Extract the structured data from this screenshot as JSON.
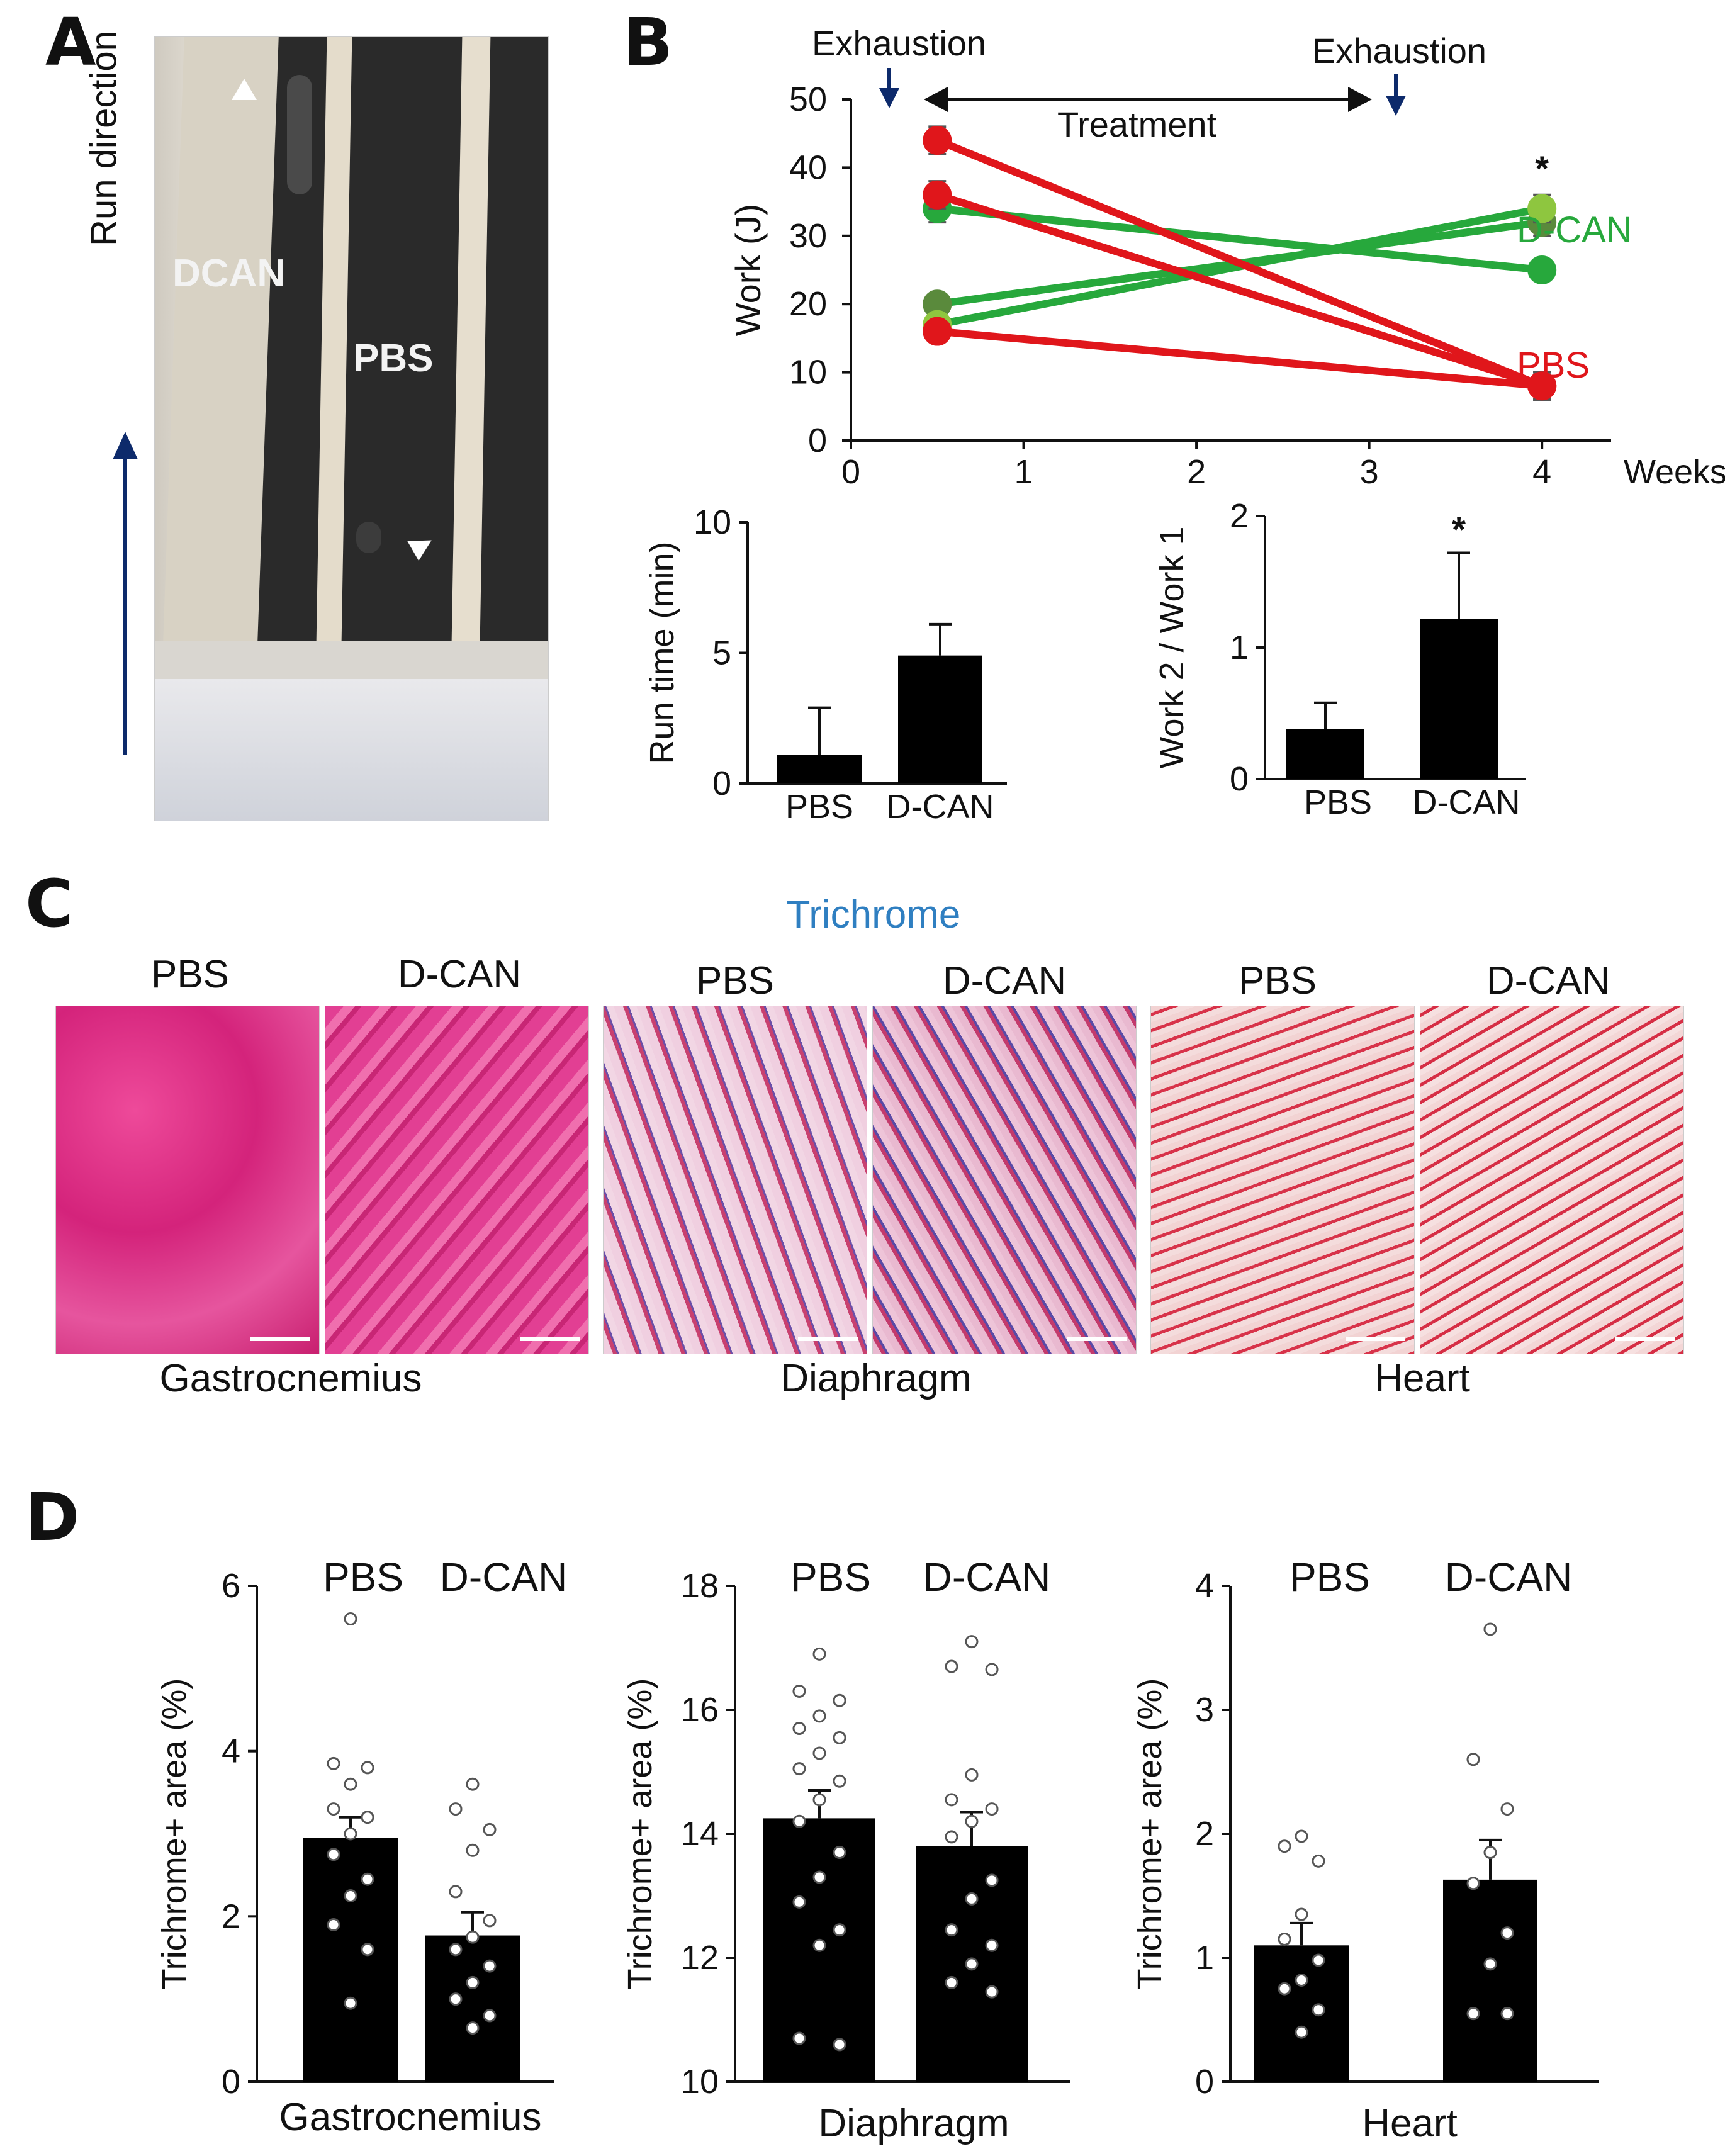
{
  "panels": {
    "a": "A",
    "b": "B",
    "c": "C",
    "d": "D"
  },
  "panel_a": {
    "labels": {
      "dcan": "DCAN",
      "pbs": "PBS",
      "run_direction": "Run direction"
    }
  },
  "panel_b": {
    "exhaustion_1": "Exhaustion",
    "exhaustion_2": "Exhaustion",
    "treatment": "Treatment"
  },
  "panel_c": {
    "stain": "Trichrome",
    "groups": [
      "PBS",
      "D-CAN"
    ],
    "tissues": [
      "Gastrocnemius",
      "Diaphragm",
      "Heart"
    ]
  },
  "colors": {
    "pbs": "#e0161b",
    "dcan": "#27a83c",
    "dcan_light": "#8ec63f",
    "dcan_dark": "#5a8a3c",
    "stain_title": "#2f7fc1",
    "arrow": "#0d2a6b"
  },
  "chart_data": [
    {
      "type": "line",
      "id": "work",
      "xlabel": "Weeks",
      "ylabel": "Work (J)",
      "xlim": [
        0,
        4.4
      ],
      "ylim": [
        0,
        50
      ],
      "xticks": [
        0,
        1,
        2,
        3,
        4
      ],
      "yticks": [
        0,
        10,
        20,
        30,
        40,
        50
      ],
      "legend": "right",
      "annotations": [
        {
          "text": "*",
          "x": 4,
          "y": 39
        }
      ],
      "groups": [
        {
          "name": "D-CAN",
          "color": "#27a83c"
        },
        {
          "name": "PBS",
          "color": "#e0161b"
        }
      ],
      "series": [
        {
          "group": "D-CAN",
          "x": [
            0.5,
            4
          ],
          "y": [
            34,
            25
          ],
          "err": [
            2,
            1.5
          ],
          "marker": "#27a83c"
        },
        {
          "group": "D-CAN",
          "x": [
            0.5,
            4
          ],
          "y": [
            20,
            32
          ],
          "err": [
            1.5,
            2
          ],
          "marker": "#5a8a3c"
        },
        {
          "group": "D-CAN",
          "x": [
            0.5,
            4
          ],
          "y": [
            17,
            34
          ],
          "err": [
            1.5,
            2
          ],
          "marker": "#8ec63f"
        },
        {
          "group": "PBS",
          "x": [
            0.5,
            4
          ],
          "y": [
            44,
            8
          ],
          "err": [
            2,
            2
          ],
          "marker": "#e0161b"
        },
        {
          "group": "PBS",
          "x": [
            0.5,
            4
          ],
          "y": [
            36,
            8
          ],
          "err": [
            2,
            2
          ],
          "marker": "#e0161b"
        },
        {
          "group": "PBS",
          "x": [
            0.5,
            4
          ],
          "y": [
            16,
            8
          ],
          "err": [
            1.5,
            2
          ],
          "marker": "#e0161b"
        }
      ]
    },
    {
      "type": "bar",
      "id": "runtime",
      "ylabel": "Run time (min)",
      "categories": [
        "PBS",
        "D-CAN"
      ],
      "values": [
        1.1,
        4.9
      ],
      "errors": [
        1.8,
        1.2
      ],
      "ylim": [
        0,
        10
      ],
      "yticks": [
        0,
        5,
        10
      ]
    },
    {
      "type": "bar",
      "id": "workratio",
      "ylabel": "Work 2 / Work 1",
      "categories": [
        "PBS",
        "D-CAN"
      ],
      "values": [
        0.38,
        1.22
      ],
      "errors": [
        0.2,
        0.5
      ],
      "ylim": [
        0,
        2
      ],
      "yticks": [
        0,
        1,
        2
      ],
      "annotations": [
        {
          "text": "*",
          "category": "D-CAN"
        }
      ]
    },
    {
      "type": "bar",
      "id": "gastro",
      "xlabel": "Gastrocnemius",
      "ylabel": "Trichrome+ area (%)",
      "categories": [
        "PBS",
        "D-CAN"
      ],
      "values": [
        2.95,
        1.77
      ],
      "errors": [
        0.25,
        0.28
      ],
      "ylim": [
        0,
        6
      ],
      "yticks": [
        0,
        2,
        4,
        6
      ],
      "points": [
        [
          5.6,
          3.85,
          3.8,
          3.6,
          3.3,
          3.2,
          3.0,
          2.75,
          2.45,
          2.25,
          1.9,
          1.6,
          0.95
        ],
        [
          3.6,
          3.3,
          3.05,
          2.8,
          2.3,
          1.95,
          1.75,
          1.6,
          1.4,
          1.2,
          1.0,
          0.8,
          0.65
        ]
      ]
    },
    {
      "type": "bar",
      "id": "diaphragm",
      "xlabel": "Diaphragm",
      "ylabel": "Trichrome+ area (%)",
      "categories": [
        "PBS",
        "D-CAN"
      ],
      "values": [
        14.25,
        13.8
      ],
      "errors": [
        0.45,
        0.55
      ],
      "ylim": [
        10,
        18
      ],
      "yticks": [
        10,
        12,
        14,
        16,
        18
      ],
      "points": [
        [
          16.9,
          16.3,
          16.15,
          15.9,
          15.7,
          15.55,
          15.3,
          15.05,
          14.85,
          14.55,
          14.2,
          13.7,
          13.3,
          12.9,
          12.45,
          12.2,
          10.7,
          10.6
        ],
        [
          17.1,
          16.7,
          16.65,
          14.95,
          14.55,
          14.4,
          14.2,
          13.95,
          13.25,
          12.95,
          12.45,
          12.2,
          11.9,
          11.6,
          11.45
        ]
      ]
    },
    {
      "type": "bar",
      "id": "heart",
      "xlabel": "Heart",
      "ylabel": "Trichrome+ area (%)",
      "categories": [
        "PBS",
        "D-CAN"
      ],
      "values": [
        1.1,
        1.63
      ],
      "errors": [
        0.18,
        0.32
      ],
      "ylim": [
        0,
        4
      ],
      "yticks": [
        0,
        1,
        2,
        3,
        4
      ],
      "points": [
        [
          1.98,
          1.9,
          1.78,
          1.35,
          1.15,
          0.98,
          0.82,
          0.75,
          0.58,
          0.4
        ],
        [
          3.65,
          2.6,
          2.2,
          1.85,
          1.6,
          1.2,
          0.95,
          0.55,
          0.55
        ]
      ]
    }
  ]
}
